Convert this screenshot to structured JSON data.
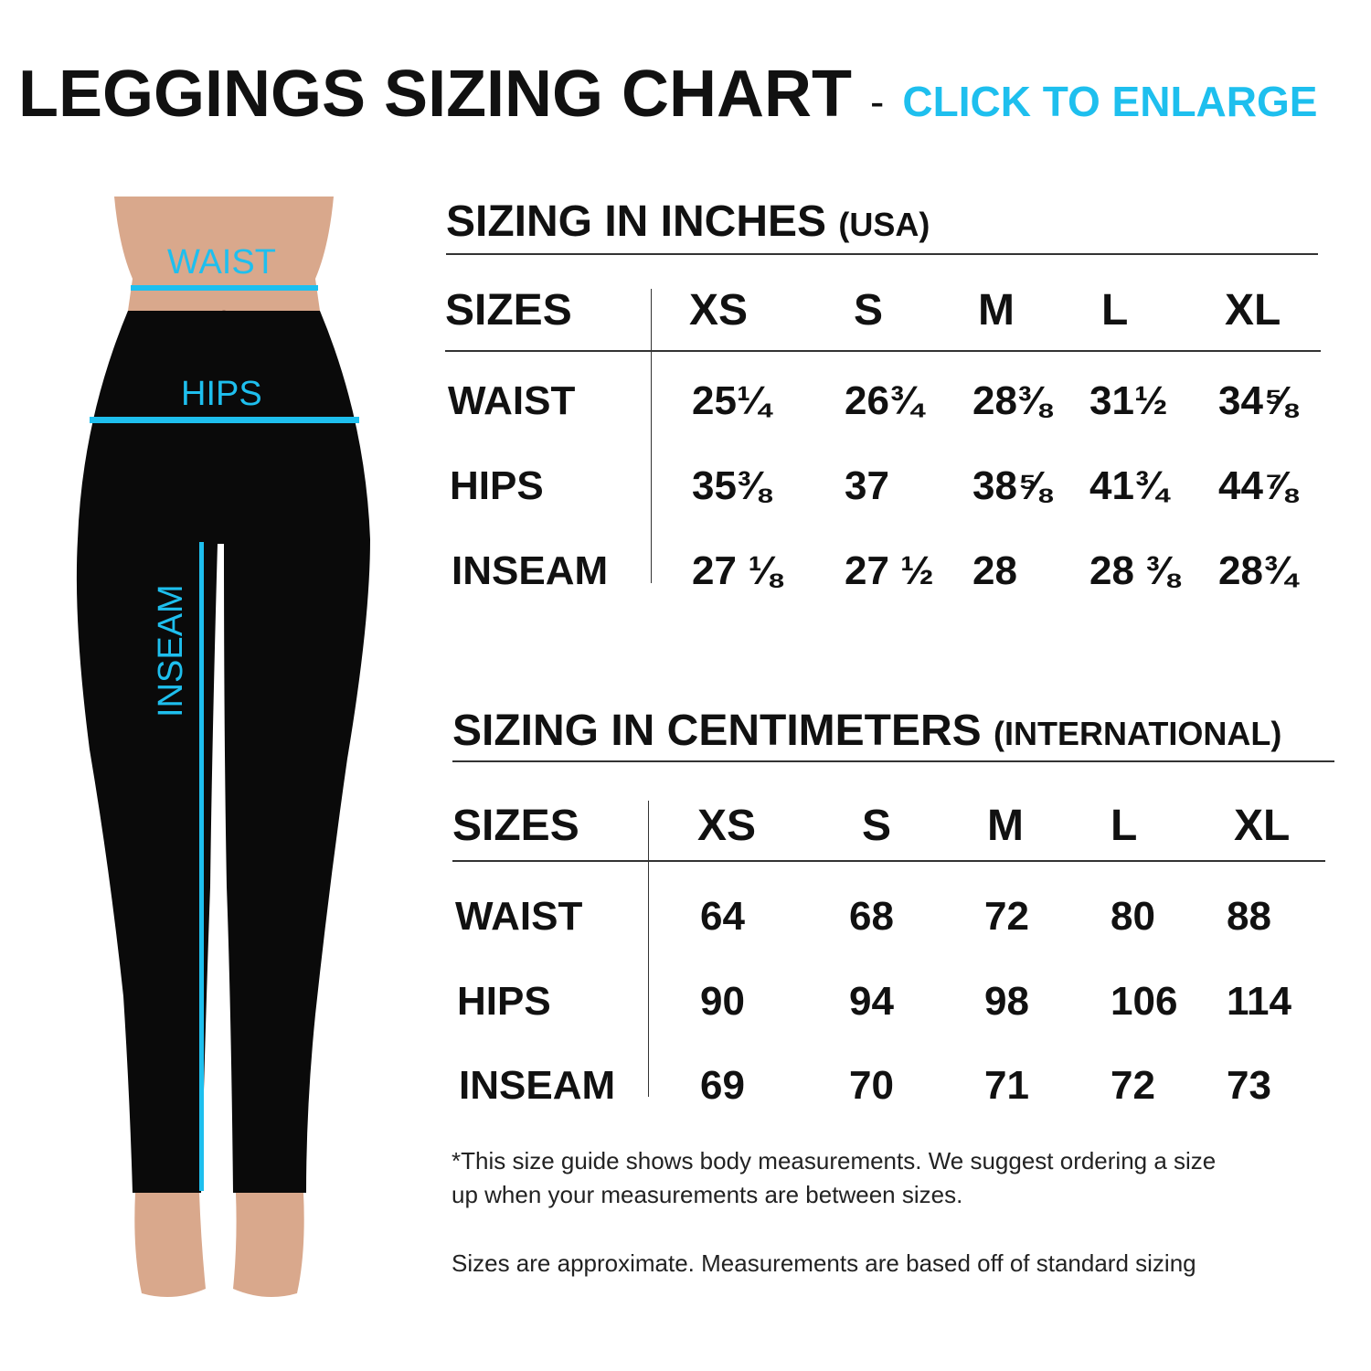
{
  "header": {
    "title": "LEGGINGS SIZING CHART",
    "separator": "-",
    "cta": "CLICK TO ENLARGE"
  },
  "figure": {
    "labels": {
      "waist": "WAIST",
      "hips": "HIPS",
      "inseam": "INSEAM"
    }
  },
  "colors": {
    "accent": "#1ebfee",
    "leggings": "#0a0a0a",
    "skin": "#d9a88c"
  },
  "inches": {
    "title": "SIZING IN INCHES",
    "subtitle": "(USA)",
    "sizes_label": "SIZES",
    "sizes": [
      "XS",
      "S",
      "M",
      "L",
      "XL"
    ],
    "rows": [
      {
        "label": "WAIST",
        "values": [
          "25¼",
          "26¾",
          "28⅜",
          "31½",
          "34⅝"
        ]
      },
      {
        "label": "HIPS",
        "values": [
          "35⅜",
          "37",
          "38⅝",
          "41¾",
          "44⅞"
        ]
      },
      {
        "label": "INSEAM",
        "values": [
          "27 ⅛",
          "27 ½",
          "28",
          "28 ⅜",
          "28¾"
        ]
      }
    ]
  },
  "centimeters": {
    "title": "SIZING IN CENTIMETERS",
    "subtitle": "(INTERNATIONAL)",
    "sizes_label": "SIZES",
    "sizes": [
      "XS",
      "S",
      "M",
      "L",
      "XL"
    ],
    "rows": [
      {
        "label": "WAIST",
        "values": [
          "64",
          "68",
          "72",
          "80",
          "88"
        ]
      },
      {
        "label": "HIPS",
        "values": [
          "90",
          "94",
          "98",
          "106",
          "114"
        ]
      },
      {
        "label": "INSEAM",
        "values": [
          "69",
          "70",
          "71",
          "72",
          "73"
        ]
      }
    ]
  },
  "notes": {
    "line1": "*This size guide shows body measurements. We suggest ordering a size",
    "line2": "up when your measurements are between sizes.",
    "line3": "Sizes are approximate. Measurements are based off of standard sizing"
  }
}
